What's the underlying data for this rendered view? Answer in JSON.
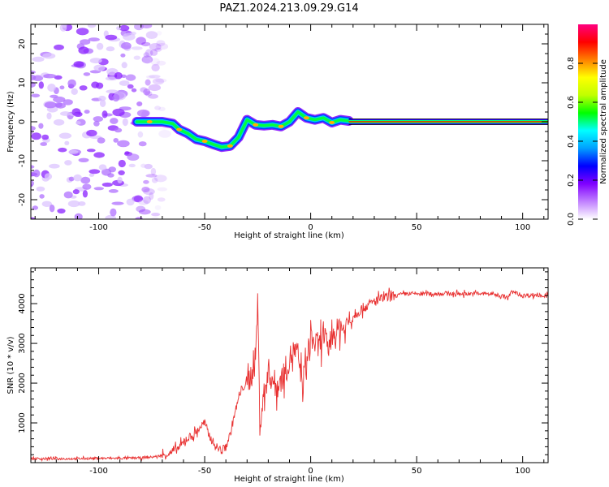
{
  "figure": {
    "title": "PAZ1.2024.213.09.29.G14"
  },
  "colors": {
    "snr_line": "#e83030",
    "axis": "#000000",
    "colormap": [
      "#ffffff",
      "#c080ff",
      "#8000ff",
      "#0000ff",
      "#00a0ff",
      "#00ffff",
      "#00ff00",
      "#c0ff00",
      "#ffff00",
      "#ff8000",
      "#ff0000",
      "#ff0080"
    ]
  },
  "chart_data": [
    {
      "type": "heatmap",
      "title": "",
      "xlabel": "Height of straight line (km)",
      "ylabel": "Frequency (Hz)",
      "xlim": [
        -132,
        112
      ],
      "ylim": [
        -25,
        25
      ],
      "xticks": [
        -100,
        -50,
        0,
        50,
        100
      ],
      "yticks": [
        -20,
        -10,
        0,
        10,
        20
      ],
      "colorbar": {
        "label": "Normalized spectral amplitude",
        "range": [
          0,
          1
        ],
        "ticks": [
          "0.0",
          "0.2",
          "0.4",
          "0.6",
          "0.8"
        ]
      },
      "noise_region_x": [
        -132,
        -72
      ],
      "ridge": [
        {
          "x": -82,
          "y": 0.0
        },
        {
          "x": -76,
          "y": 0.0
        },
        {
          "x": -70,
          "y": 0.0
        },
        {
          "x": -65,
          "y": -0.5
        },
        {
          "x": -62,
          "y": -2.0
        },
        {
          "x": -58,
          "y": -3.0
        },
        {
          "x": -54,
          "y": -4.5
        },
        {
          "x": -50,
          "y": -5.0
        },
        {
          "x": -46,
          "y": -5.8
        },
        {
          "x": -42,
          "y": -6.5
        },
        {
          "x": -38,
          "y": -6.2
        },
        {
          "x": -34,
          "y": -4.0
        },
        {
          "x": -30,
          "y": 0.5
        },
        {
          "x": -26,
          "y": -0.8
        },
        {
          "x": -22,
          "y": -1.0
        },
        {
          "x": -18,
          "y": -0.8
        },
        {
          "x": -14,
          "y": -1.2
        },
        {
          "x": -10,
          "y": 0.0
        },
        {
          "x": -6,
          "y": 2.5
        },
        {
          "x": -2,
          "y": 1.0
        },
        {
          "x": 2,
          "y": 0.5
        },
        {
          "x": 6,
          "y": 1.0
        },
        {
          "x": 10,
          "y": -0.2
        },
        {
          "x": 14,
          "y": 0.5
        },
        {
          "x": 18,
          "y": 0.2
        }
      ],
      "steady_band": {
        "x_start": 18,
        "x_end": 112,
        "y": 0.0
      }
    },
    {
      "type": "line",
      "title": "",
      "xlabel": "Height of straight line (km)",
      "ylabel": "SNR (10 * v/v)",
      "xlim": [
        -132,
        112
      ],
      "ylim": [
        0,
        4900
      ],
      "xticks": [
        -100,
        -50,
        0,
        50,
        100
      ],
      "yticks": [
        1000,
        2000,
        3000,
        4000
      ],
      "series": [
        {
          "x": [
            -132,
            -120,
            -110,
            -100,
            -90,
            -80,
            -75,
            -70,
            -66,
            -62,
            -58,
            -55,
            -52,
            -50,
            -48,
            -45,
            -42,
            -40,
            -38,
            -36,
            -34,
            -32,
            -30,
            -28,
            -26,
            -25,
            -24,
            -22,
            -20,
            -18,
            -16,
            -14,
            -12,
            -10,
            -8,
            -6,
            -4,
            -2,
            0,
            2,
            4,
            6,
            8,
            10,
            12,
            14,
            16,
            18,
            20,
            25,
            30,
            35,
            40,
            45,
            50,
            55,
            60,
            65,
            70,
            75,
            80,
            85,
            90,
            93,
            95,
            100,
            105,
            110,
            112
          ],
          "y": [
            100,
            100,
            100,
            110,
            110,
            120,
            140,
            180,
            240,
            380,
            620,
            700,
            900,
            1000,
            700,
            420,
            300,
            400,
            700,
            1200,
            1600,
            1900,
            2000,
            2200,
            2600,
            4100,
            1000,
            1700,
            2300,
            2100,
            1900,
            2100,
            2300,
            2600,
            2800,
            2700,
            2000,
            2400,
            3200,
            3000,
            2900,
            3300,
            2800,
            3300,
            3200,
            3500,
            3300,
            3600,
            3700,
            3900,
            4050,
            4150,
            4200,
            4250,
            4250,
            4250,
            4250,
            4250,
            4250,
            4250,
            4250,
            4250,
            4200,
            4150,
            4300,
            4200,
            4220,
            4200,
            4200
          ]
        }
      ]
    }
  ]
}
